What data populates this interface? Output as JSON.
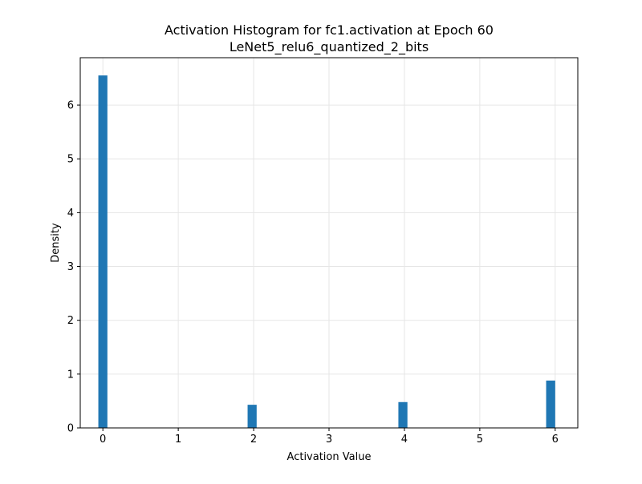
{
  "chart_data": {
    "type": "bar",
    "title": "Activation Histogram for fc1.activation at Epoch 60",
    "subtitle": "LeNet5_relu6_quantized_2_bits",
    "xlabel": "Activation Value",
    "ylabel": "Density",
    "xlim": [
      -0.3,
      6.3
    ],
    "ylim": [
      0,
      6.88
    ],
    "xticks": [
      0,
      1,
      2,
      3,
      4,
      5,
      6
    ],
    "yticks": [
      0,
      1,
      2,
      3,
      4,
      5,
      6
    ],
    "grid": true,
    "bar_width": 0.12,
    "bar_color": "#1f77b4",
    "bins": [
      {
        "x": 0.0,
        "value": 6.55
      },
      {
        "x": 1.98,
        "value": 0.43
      },
      {
        "x": 3.98,
        "value": 0.48
      },
      {
        "x": 5.94,
        "value": 0.88
      }
    ]
  }
}
